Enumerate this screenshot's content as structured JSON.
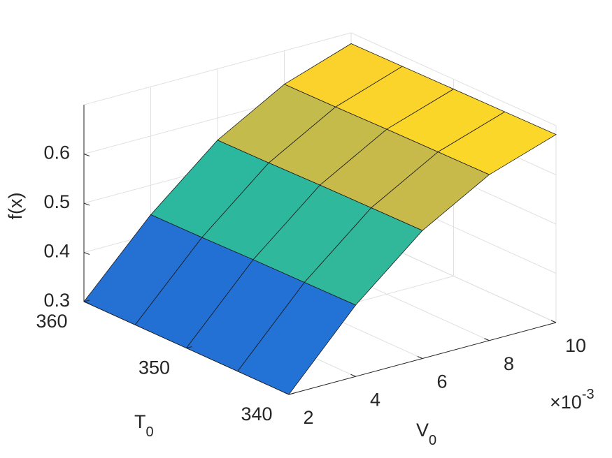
{
  "chart_data": {
    "type": "surface",
    "x": [
      0.002,
      0.004,
      0.006,
      0.008,
      0.01
    ],
    "y": [
      340,
      345,
      350,
      355,
      360
    ],
    "z": [
      [
        0.3,
        0.445,
        0.56,
        0.637,
        0.682
      ],
      [
        0.3,
        0.444,
        0.559,
        0.636,
        0.681
      ],
      [
        0.3,
        0.443,
        0.558,
        0.635,
        0.68
      ],
      [
        0.3,
        0.441,
        0.556,
        0.633,
        0.679
      ],
      [
        0.3,
        0.44,
        0.555,
        0.632,
        0.678
      ]
    ],
    "xlim": [
      0.002,
      0.01
    ],
    "ylim": [
      340,
      360
    ],
    "zlim": [
      0.3,
      0.7
    ],
    "xticks": [
      {
        "value": 0.002,
        "label": "2"
      },
      {
        "value": 0.004,
        "label": "4"
      },
      {
        "value": 0.006,
        "label": "6"
      },
      {
        "value": 0.008,
        "label": "8"
      },
      {
        "value": 0.01,
        "label": "10"
      }
    ],
    "yticks": [
      340,
      350,
      360
    ],
    "zticks": [
      0.3,
      0.4,
      0.5,
      0.6
    ],
    "xlabel": {
      "text": "V",
      "subscript": "0"
    },
    "ylabel": {
      "text": "T",
      "subscript": "0"
    },
    "zlabel": "f(x)",
    "x_multiplier": {
      "text": "×10",
      "exponent": "-3"
    },
    "grid": true,
    "colormap": "parula"
  }
}
